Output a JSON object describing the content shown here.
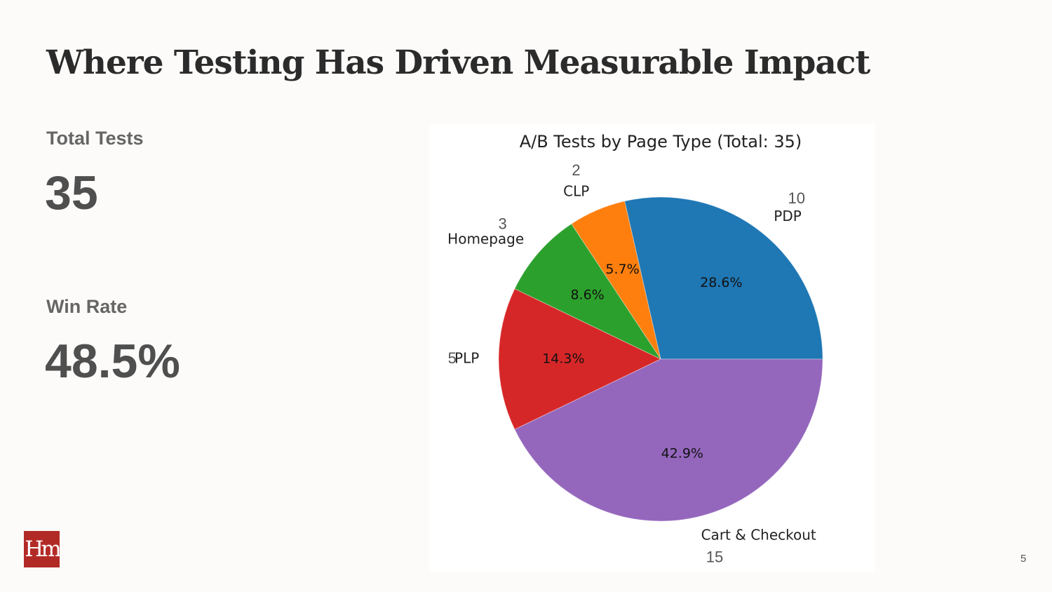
{
  "slide": {
    "title": "Where Testing Has Driven Measurable Impact",
    "page_number": "5",
    "logo_text": "Hm"
  },
  "stats": [
    {
      "label": "Total Tests",
      "value": "35"
    },
    {
      "label": "Win Rate",
      "value": "48.5%"
    }
  ],
  "chart_data": {
    "type": "pie",
    "title": "A/B Tests by Page Type (Total: 35)",
    "start_angle_deg": 0,
    "direction": "counterclockwise",
    "slices": [
      {
        "label": "PDP",
        "count": "10",
        "percent": "28.6%",
        "value": 10,
        "color": "#1f77b4"
      },
      {
        "label": "CLP",
        "count": "2",
        "percent": "5.7%",
        "value": 2,
        "color": "#ff7f0e"
      },
      {
        "label": "Homepage",
        "count": "3",
        "percent": "8.6%",
        "value": 3,
        "color": "#2ca02c"
      },
      {
        "label": "PLP",
        "count": "5",
        "percent": "14.3%",
        "value": 5,
        "color": "#d62728"
      },
      {
        "label": "Cart & Checkout",
        "count": "15",
        "percent": "42.9%",
        "value": 15,
        "color": "#9467bd"
      }
    ]
  }
}
